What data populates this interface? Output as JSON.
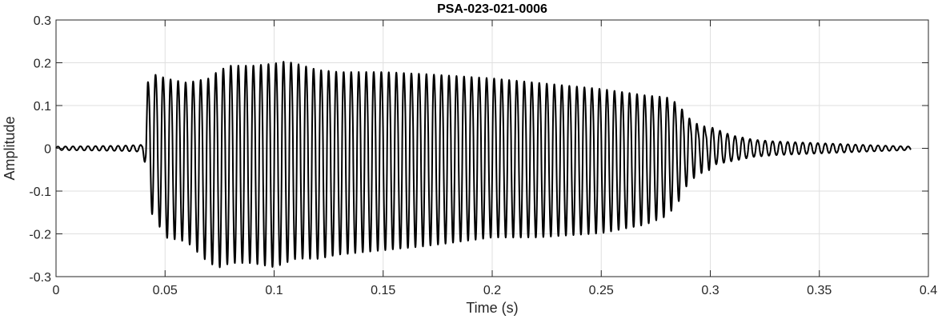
{
  "chart_data": {
    "type": "line",
    "title": "PSA-023-021-0006",
    "xlabel": "Time (s)",
    "ylabel": "Amplitude",
    "xlim": [
      0,
      0.4
    ],
    "ylim": [
      -0.3,
      0.3
    ],
    "grid": true,
    "xticks": [
      0,
      0.05,
      0.1,
      0.15,
      0.2,
      0.25,
      0.3,
      0.35,
      0.4
    ],
    "xtick_labels": [
      "0",
      "0.05",
      "0.1",
      "0.15",
      "0.2",
      "0.25",
      "0.3",
      "0.35",
      "0.4"
    ],
    "yticks": [
      -0.3,
      -0.2,
      -0.1,
      0,
      0.1,
      0.2,
      0.3
    ],
    "ytick_labels": [
      "-0.3",
      "-0.2",
      "-0.1",
      "0",
      "0.1",
      "0.2",
      "0.3"
    ],
    "line_color": "#000000",
    "grid_color": "#dfdfdf",
    "series": [
      {
        "cycle_period_s": 0.00345,
        "start_s": 0,
        "end_s": 0.392,
        "envelope": {
          "t": [
            0,
            0.03,
            0.0395,
            0.041,
            0.042,
            0.046,
            0.05,
            0.06,
            0.07,
            0.075,
            0.08,
            0.09,
            0.1,
            0.105,
            0.11,
            0.12,
            0.13,
            0.15,
            0.17,
            0.2,
            0.22,
            0.25,
            0.27,
            0.28,
            0.285,
            0.29,
            0.295,
            0.3,
            0.31,
            0.32,
            0.33,
            0.35,
            0.37,
            0.392
          ],
          "max": [
            0.004,
            0.006,
            0.008,
            0.08,
            0.16,
            0.18,
            0.17,
            0.16,
            0.17,
            0.19,
            0.2,
            0.2,
            0.205,
            0.21,
            0.205,
            0.19,
            0.185,
            0.185,
            0.18,
            0.17,
            0.16,
            0.145,
            0.13,
            0.125,
            0.11,
            0.075,
            0.055,
            0.05,
            0.03,
            0.02,
            0.016,
            0.012,
            0.008,
            0.004
          ],
          "min": [
            -0.004,
            -0.006,
            -0.008,
            -0.04,
            -0.13,
            -0.16,
            -0.2,
            -0.21,
            -0.26,
            -0.27,
            -0.26,
            -0.26,
            -0.27,
            -0.26,
            -0.25,
            -0.25,
            -0.24,
            -0.23,
            -0.22,
            -0.2,
            -0.2,
            -0.19,
            -0.17,
            -0.15,
            -0.12,
            -0.07,
            -0.05,
            -0.04,
            -0.03,
            -0.02,
            -0.016,
            -0.012,
            -0.008,
            -0.004
          ]
        }
      }
    ]
  }
}
